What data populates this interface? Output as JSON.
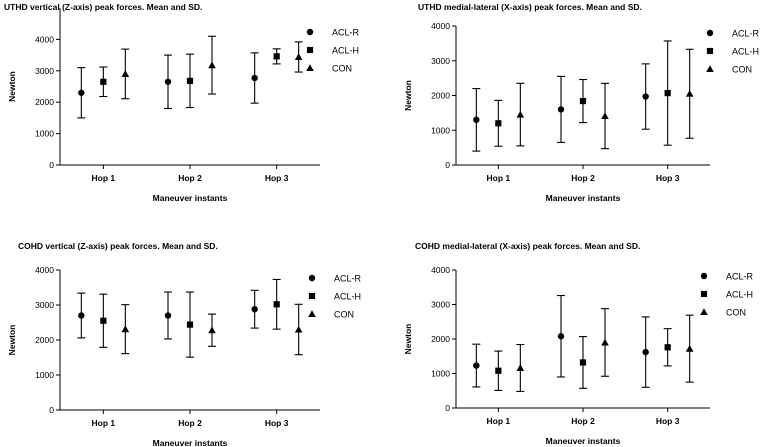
{
  "chart_data": [
    {
      "type": "scatter",
      "title": "UTHD vertical (Z-axis) peak forces. Mean and SD.",
      "xlabel": "Maneuver instants",
      "ylabel": "Newton",
      "categories": [
        "Hop 1",
        "Hop 2",
        "Hop 3"
      ],
      "ylim": [
        0,
        5000
      ],
      "yticks": [
        0,
        1000,
        2000,
        3000,
        4000
      ],
      "grid": false,
      "legend_position": "right",
      "series": [
        {
          "name": "ACL-R",
          "marker": "circle",
          "values": [
            2300,
            2650,
            2770
          ],
          "sd": [
            800,
            850,
            800
          ]
        },
        {
          "name": "ACL-H",
          "marker": "square",
          "values": [
            2650,
            2680,
            3460
          ],
          "sd": [
            470,
            850,
            240
          ]
        },
        {
          "name": "CON",
          "marker": "triangle",
          "values": [
            2900,
            3180,
            3440
          ],
          "sd": [
            790,
            920,
            480
          ]
        }
      ]
    },
    {
      "type": "scatter",
      "title": "UTHD medial-lateral (X-axis) peak forces. Mean and SD.",
      "xlabel": "Maneuver instants",
      "ylabel": "Newton",
      "categories": [
        "Hop 1",
        "Hop 2",
        "Hop 3"
      ],
      "ylim": [
        0,
        4000
      ],
      "yticks": [
        0,
        1000,
        2000,
        3000,
        4000
      ],
      "grid": false,
      "legend_position": "right",
      "series": [
        {
          "name": "ACL-R",
          "marker": "circle",
          "values": [
            1300,
            1600,
            1970
          ],
          "sd": [
            900,
            950,
            940
          ]
        },
        {
          "name": "ACL-H",
          "marker": "square",
          "values": [
            1200,
            1840,
            2070
          ],
          "sd": [
            660,
            620,
            1500
          ]
        },
        {
          "name": "CON",
          "marker": "triangle",
          "values": [
            1450,
            1410,
            2050
          ],
          "sd": [
            900,
            940,
            1280
          ]
        }
      ]
    },
    {
      "type": "scatter",
      "title": "COHD vertical (Z-axis) peak forces. Mean and SD.",
      "xlabel": "Maneuver instants",
      "ylabel": "Newton",
      "categories": [
        "Hop 1",
        "Hop 2",
        "Hop 3"
      ],
      "ylim": [
        0,
        4000
      ],
      "yticks": [
        0,
        1000,
        2000,
        3000,
        4000
      ],
      "grid": false,
      "legend_position": "right",
      "series": [
        {
          "name": "ACL-R",
          "marker": "circle",
          "values": [
            2700,
            2700,
            2880
          ],
          "sd": [
            640,
            670,
            540
          ]
        },
        {
          "name": "ACL-H",
          "marker": "square",
          "values": [
            2550,
            2440,
            3020
          ],
          "sd": [
            760,
            930,
            710
          ]
        },
        {
          "name": "CON",
          "marker": "triangle",
          "values": [
            2310,
            2280,
            2300
          ],
          "sd": [
            700,
            460,
            720
          ]
        }
      ]
    },
    {
      "type": "scatter",
      "title": "COHD medial-lateral (X-axis) peak forces. Mean and SD.",
      "xlabel": "Maneuver instants",
      "ylabel": "Newton",
      "categories": [
        "Hop 1",
        "Hop 2",
        "Hop 3"
      ],
      "ylim": [
        0,
        4000
      ],
      "yticks": [
        0,
        1000,
        2000,
        3000,
        4000
      ],
      "grid": false,
      "legend_position": "right",
      "series": [
        {
          "name": "ACL-R",
          "marker": "circle",
          "values": [
            1230,
            2080,
            1620
          ],
          "sd": [
            620,
            1180,
            1020
          ]
        },
        {
          "name": "ACL-H",
          "marker": "square",
          "values": [
            1080,
            1320,
            1760
          ],
          "sd": [
            570,
            750,
            540
          ]
        },
        {
          "name": "CON",
          "marker": "triangle",
          "values": [
            1160,
            1900,
            1720
          ],
          "sd": [
            680,
            980,
            970
          ]
        }
      ]
    }
  ]
}
